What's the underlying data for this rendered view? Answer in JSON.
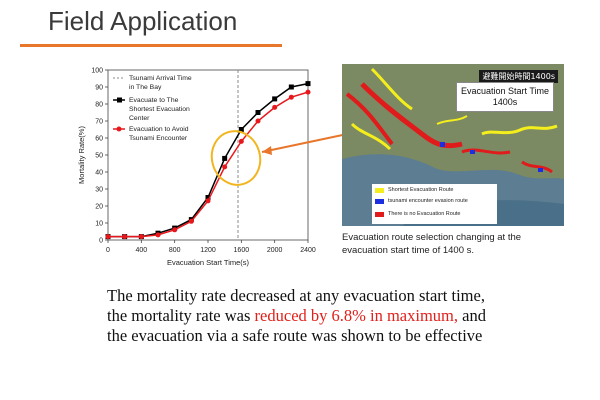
{
  "slide": {
    "title": "Field Application",
    "accent_color": "#e8762b"
  },
  "chart_data": {
    "type": "line",
    "xlabel": "Evacuation Start Time(s)",
    "ylabel": "Mortality Rate(%)",
    "xlim": [
      0,
      2400
    ],
    "ylim": [
      0,
      100
    ],
    "x_ticks": [
      0,
      400,
      800,
      1200,
      1600,
      2000,
      2400
    ],
    "y_ticks": [
      0,
      10,
      20,
      30,
      40,
      50,
      60,
      70,
      80,
      90,
      100
    ],
    "grid": false,
    "legend_position": "top-left",
    "vline": {
      "x": 1560,
      "label": "Tsunami Arrival Time in The Bay"
    },
    "x": [
      0,
      200,
      400,
      600,
      800,
      1000,
      1200,
      1400,
      1600,
      1800,
      2000,
      2200,
      2400
    ],
    "series": [
      {
        "name": "Evacuate to The Shortest Evacuation Center",
        "color": "#000000",
        "marker": "square",
        "values": [
          2,
          2,
          2,
          4,
          7,
          12,
          25,
          48,
          65,
          75,
          83,
          90,
          92
        ]
      },
      {
        "name": "Evacuation to Avoid Tsunami Encounter",
        "color": "#e8171c",
        "marker": "circle",
        "values": [
          2,
          2,
          2,
          3,
          6,
          11,
          23,
          43,
          58,
          70,
          78,
          84,
          87
        ]
      }
    ]
  },
  "map": {
    "corner_label": "避難開始時間1400s",
    "box_title_line1": "Evacuation Start Time",
    "box_title_line2": "1400s",
    "legend": [
      {
        "label": "Shortest Evacuation Route",
        "color": "#f4ee1d"
      },
      {
        "label": "tsunami encounter evasion route",
        "color": "#1b2ee0"
      },
      {
        "label": "There is no Evacuation Route",
        "color": "#e01b1b"
      }
    ],
    "caption": "Evacuation route selection changing at the evacuation start time of 1400 s."
  },
  "body": {
    "line1": "The mortality rate decreased at any evacuation start time,",
    "line2_pre": "the mortality rate was ",
    "line2_highlight": "reduced by 6.8% in maximum,",
    "line2_post": " and",
    "line3": "the evacuation via a safe route was shown to be effective",
    "highlight_color": "#e0201b"
  }
}
